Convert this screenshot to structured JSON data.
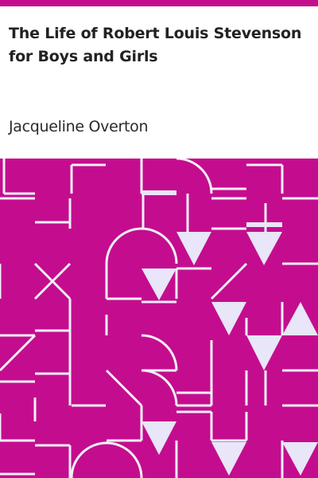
{
  "book": {
    "title": "The Life of Robert Louis Stevenson for Boys and Girls",
    "author": "Jacqueline Overton"
  },
  "colors": {
    "accent": "#c40d8e",
    "pattern_lines": "#eeeeee",
    "shapes": "#e8e6f8",
    "text": "#222222"
  },
  "icons": {
    "pattern": "geometric-tile-pattern"
  }
}
